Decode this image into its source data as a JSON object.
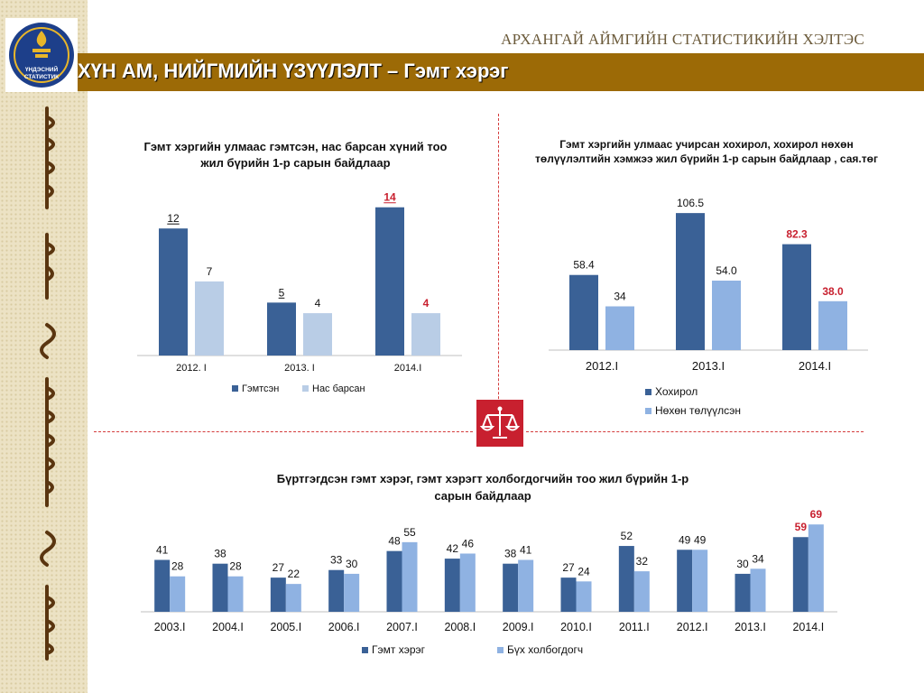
{
  "header": {
    "org_name": "АРХАНГАЙ АЙМГИЙН СТАТИСТИКИЙН ХЭЛТЭС",
    "title": "ХҮН АМ, НИЙГМИЙН ҮЗҮҮЛЭЛТ – Гэмт хэрэг",
    "logo_text_line1": "ҮНДЭСНИЙ",
    "logo_text_line2": "СТАТИСТИК"
  },
  "colors": {
    "brown": "#9c6a06",
    "dark_blue": "#3a6196",
    "light_blue_pale": "#b9cde6",
    "light_blue": "#8fb2e2",
    "highlight_red": "#c8202f"
  },
  "chart_data": [
    {
      "type": "bar",
      "title": "Гэмт хэргийн улмаас гэмтсэн, нас барсан хүний тоо жил бүрийн 1-р сарын байдлаар",
      "categories": [
        "2012. I",
        "2013. I",
        "2014.I"
      ],
      "series": [
        {
          "name": "Гэмтсэн",
          "values": [
            12,
            5,
            14
          ],
          "labels": [
            "12",
            "5",
            "14"
          ],
          "color": "#3a6196"
        },
        {
          "name": "Нас барсан",
          "values": [
            7,
            4,
            4
          ],
          "labels": [
            "7",
            "4",
            "4"
          ],
          "color": "#b9cde6"
        }
      ],
      "highlight": {
        "category_index": 2,
        "color": "#c8202f"
      },
      "legend": "bottom",
      "ylim": [
        0,
        15
      ]
    },
    {
      "type": "bar",
      "title": "Гэмт хэргийн улмаас учирсан хохирол, хохирол нөхөн төлүүлэлтийн хэмжээ жил бүрийн 1-р сарын байдлаар , сая.төг",
      "categories": [
        "2012.I",
        "2013.I",
        "2014.I"
      ],
      "series": [
        {
          "name": "Хохирол",
          "values": [
            58.4,
            106.5,
            82.3
          ],
          "labels": [
            "58.4",
            "106.5",
            "82.3"
          ],
          "color": "#3a6196"
        },
        {
          "name": "Нөхөн төлүүлсэн",
          "values": [
            34,
            54.0,
            38.0
          ],
          "labels": [
            "34",
            "54.0",
            "38.0"
          ],
          "color": "#8fb2e2"
        }
      ],
      "highlight": {
        "category_index": 2,
        "color": "#c8202f"
      },
      "legend": "bottom",
      "ylim": [
        0,
        115
      ]
    },
    {
      "type": "bar",
      "title": "Бүртгэгдсэн гэмт хэрэг, гэмт хэрэгт холбогдогчийн тоо жил бүрийн 1-р сарын байдлаар",
      "categories": [
        "2003.I",
        "2004.I",
        "2005.I",
        "2006.I",
        "2007.I",
        "2008.I",
        "2009.I",
        "2010.I",
        "2011.I",
        "2012.I",
        "2013.I",
        "2014.I"
      ],
      "series": [
        {
          "name": "Гэмт хэрэг",
          "values": [
            41,
            38,
            27,
            33,
            48,
            42,
            38,
            27,
            52,
            49,
            30,
            59
          ],
          "labels": [
            "41",
            "38",
            "27",
            "33",
            "48",
            "42",
            "38",
            "27",
            "52",
            "49",
            "30",
            "59"
          ],
          "color": "#3a6196"
        },
        {
          "name": "Бүх холбогдогч",
          "values": [
            28,
            28,
            22,
            30,
            55,
            46,
            41,
            24,
            32,
            49,
            34,
            69
          ],
          "labels": [
            "28",
            "28",
            "22",
            "30",
            "55",
            "46",
            "41",
            "24",
            "32",
            "49",
            "34",
            "69"
          ],
          "color": "#8fb2e2"
        }
      ],
      "highlight": {
        "category_index": 11,
        "color": "#c8202f"
      },
      "legend": "bottom",
      "ylim": [
        0,
        72
      ]
    }
  ]
}
